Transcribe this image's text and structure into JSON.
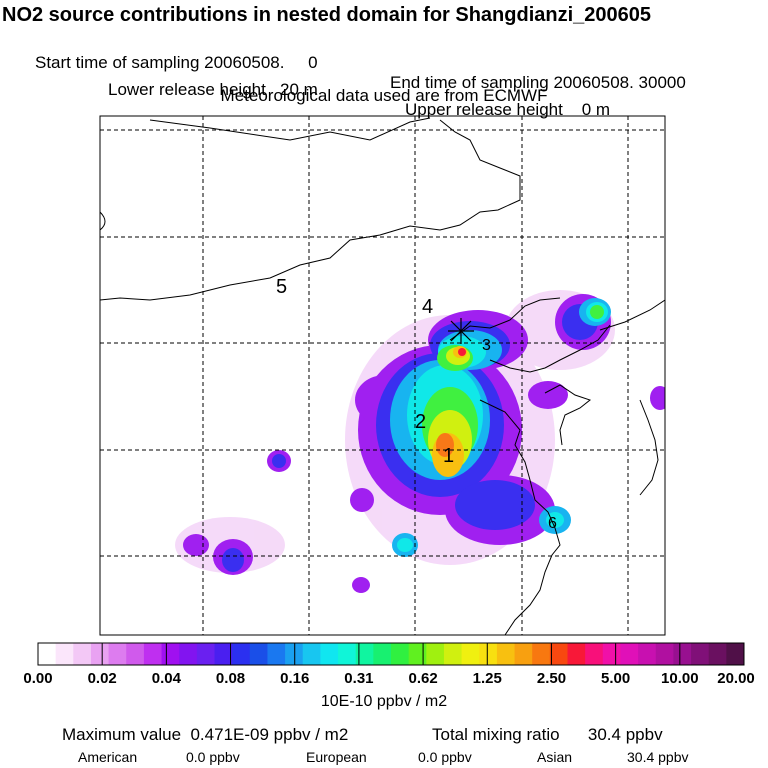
{
  "header": {
    "title": "NO2 source contributions in nested domain for Shangdianzi_200605",
    "start_label": "Start time of sampling 20060508.     0",
    "end_label": "End time of sampling 20060508. 30000",
    "lower_label": "Lower release height   20 m",
    "upper_label": "Upper release height    0 m",
    "met_label": "Meteorological data used are from ECMWF"
  },
  "map": {
    "contour_labels": [
      "5",
      "4",
      "2",
      "1",
      "3",
      "6"
    ],
    "station_marker": "*"
  },
  "colorbar": {
    "ticks": [
      "0.00",
      "0.02",
      "0.04",
      "0.08",
      "0.16",
      "0.31",
      "0.62",
      "1.25",
      "2.50",
      "5.00",
      "10.00",
      "20.00"
    ],
    "unit": "10E-10 ppbv / m2",
    "colors": [
      "#ffffff",
      "#fbe6fb",
      "#f3c8f6",
      "#e9a2f2",
      "#dd7cef",
      "#d05aec",
      "#bf2ff0",
      "#a010f0",
      "#8214f0",
      "#6a20f0",
      "#4a1ff0",
      "#2b30f0",
      "#1a4fe8",
      "#1a78f0",
      "#1aa0f0",
      "#18c6f0",
      "#10e6f0",
      "#10f5d8",
      "#10f5a0",
      "#18f070",
      "#30f040",
      "#60f020",
      "#a0f010",
      "#d0f010",
      "#f0f010",
      "#f8e010",
      "#f8c010",
      "#f8a010",
      "#f87810",
      "#f84810",
      "#f81838",
      "#f8107a",
      "#f010a8",
      "#e010b8",
      "#c810b0",
      "#b010a0",
      "#981090",
      "#801078",
      "#6a1060",
      "#501048"
    ]
  },
  "footer": {
    "max_label": "Maximum value  0.471E-09 ppbv / m2",
    "total_label": "Total mixing ratio      30.4 ppbv",
    "american_label": "American",
    "american_value": "0.0 ppbv",
    "european_label": "European",
    "european_value": "0.0 ppbv",
    "asian_label": "Asian",
    "asian_value": "30.4 ppbv"
  }
}
